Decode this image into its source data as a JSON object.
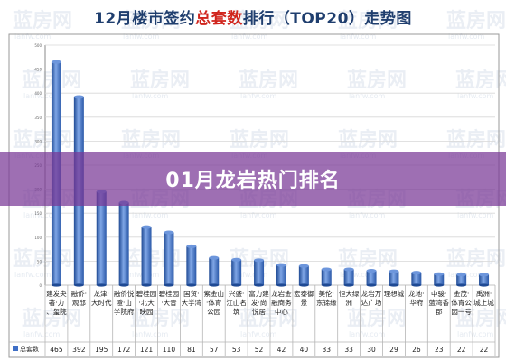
{
  "title": {
    "prefix": "12月楼市签约",
    "highlight": "总套数",
    "suffix": "排行（TOP20）走势图"
  },
  "overlay": {
    "caption": "01月龙岩热门排名"
  },
  "watermark": {
    "brand": "蓝房网",
    "url": "lanfw.com"
  },
  "colors": {
    "bar": "#3f6fc6",
    "bar_light": "#7fa6e6",
    "bar_dark": "#1f4a94",
    "title": "#1f3e6e",
    "title_highlight": "#d0241c",
    "overlay": "#784096"
  },
  "chart_data": {
    "type": "bar",
    "categories": [
      "建发央著·力、玺院",
      "融侨·观邸",
      "龙津·大时代",
      "融侨悦澄·山学院府",
      "碧桂园·北大映园",
      "碧桂园·大音",
      "国贸·大学湾",
      "紫金山·体育公园",
      "兴盛·江山名筑",
      "富力建发·尚悦居",
      "龙岩金融商务中心",
      "宏泰御景",
      "美伦·东锦缘",
      "恒大绿洲",
      "龙岩万达广场",
      "理想城",
      "龙地·华府",
      "中骏·蓝湾香郡",
      "金茂·体育公园一号",
      "禹洲·城上城"
    ],
    "series": [
      {
        "name": "总套数",
        "values": [
          465,
          392,
          195,
          172,
          121,
          110,
          81,
          57,
          53,
          52,
          42,
          40,
          33,
          33,
          30,
          29,
          26,
          23,
          22,
          22
        ]
      }
    ],
    "ylim": [
      0,
      500
    ],
    "ytick_labels": [
      "0",
      "50",
      "100",
      "150",
      "200",
      "250",
      "300",
      "350",
      "400",
      "450",
      "500"
    ],
    "legend": "bottom-left table row",
    "grid": true
  }
}
